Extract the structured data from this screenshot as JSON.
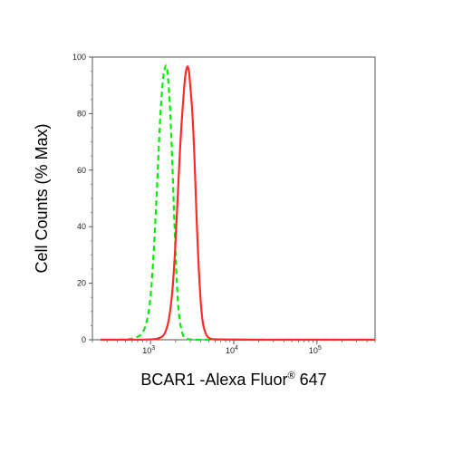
{
  "chart_data": {
    "type": "line",
    "title": "",
    "xlabel": {
      "main": "BCAR1 -Alexa Fluor",
      "superscript": "®",
      "suffix": " 647"
    },
    "ylabel": "Cell Counts (% Max)",
    "x_scale": "log",
    "xlim": [
      200,
      500000
    ],
    "ylim": [
      0,
      100
    ],
    "y_ticks": [
      "0",
      "20",
      "40",
      "60",
      "80",
      "100"
    ],
    "x_ticks": [
      {
        "base": "10",
        "exp": "3",
        "value": 1000
      },
      {
        "base": "10",
        "exp": "4",
        "value": 10000
      },
      {
        "base": "10",
        "exp": "5",
        "value": 100000
      }
    ],
    "grid": false,
    "legend": "none",
    "series": [
      {
        "color": "#00ee00",
        "style": "dashed",
        "x": [
          250,
          500,
          650,
          800,
          900,
          1000,
          1100,
          1200,
          1300,
          1400,
          1500,
          1550,
          1600,
          1700,
          1800,
          1900,
          2000,
          2100,
          2200,
          2400,
          2600,
          3000,
          4000,
          500000
        ],
        "y": [
          0,
          0,
          0.5,
          2,
          6,
          14,
          32,
          55,
          78,
          92,
          97,
          97,
          95,
          85,
          68,
          48,
          30,
          16,
          8,
          2,
          0.5,
          0,
          0,
          0
        ]
      },
      {
        "color": "#ff2a2a",
        "style": "solid",
        "x": [
          250,
          1000,
          1300,
          1500,
          1700,
          1900,
          2100,
          2300,
          2500,
          2600,
          2700,
          2800,
          2900,
          3000,
          3200,
          3400,
          3600,
          3900,
          4200,
          4600,
          5000,
          6000,
          500000
        ],
        "y": [
          0,
          0,
          0.5,
          2,
          8,
          22,
          48,
          72,
          87,
          93,
          96,
          97,
          95,
          90,
          80,
          62,
          40,
          18,
          6,
          2,
          0.5,
          0,
          0
        ]
      }
    ]
  }
}
